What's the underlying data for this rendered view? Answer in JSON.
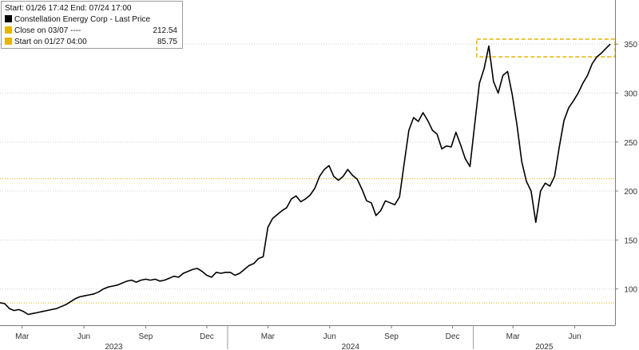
{
  "legend": {
    "header": "Start: 01/26 17:42 End: 07/24 17:00",
    "entries": [
      {
        "label": "Constellation Energy Corp - Last Price",
        "value": "",
        "color": "#000000"
      },
      {
        "label": "Close on 03/07 ----",
        "value": "212.54",
        "color": "#e8b400"
      },
      {
        "label": "Start on 01/27 04:00",
        "value": "85.75",
        "color": "#e8b400"
      }
    ]
  },
  "chart_data": {
    "type": "line",
    "series": [
      {
        "name": "Constellation Energy Corp - Last Price",
        "color": "#000000",
        "points": [
          [
            "2023-01-27",
            86
          ],
          [
            "2023-02-03",
            85
          ],
          [
            "2023-02-10",
            80
          ],
          [
            "2023-02-17",
            78
          ],
          [
            "2023-02-24",
            79
          ],
          [
            "2023-03-03",
            77
          ],
          [
            "2023-03-10",
            74
          ],
          [
            "2023-03-17",
            75
          ],
          [
            "2023-03-24",
            76
          ],
          [
            "2023-03-31",
            77
          ],
          [
            "2023-04-07",
            78
          ],
          [
            "2023-04-14",
            79
          ],
          [
            "2023-04-21",
            80
          ],
          [
            "2023-04-28",
            82
          ],
          [
            "2023-05-05",
            84
          ],
          [
            "2023-05-12",
            87
          ],
          [
            "2023-05-19",
            90
          ],
          [
            "2023-05-26",
            92
          ],
          [
            "2023-06-02",
            93
          ],
          [
            "2023-06-09",
            94
          ],
          [
            "2023-06-16",
            95
          ],
          [
            "2023-06-23",
            97
          ],
          [
            "2023-06-30",
            100
          ],
          [
            "2023-07-07",
            102
          ],
          [
            "2023-07-14",
            103
          ],
          [
            "2023-07-21",
            104
          ],
          [
            "2023-07-28",
            106
          ],
          [
            "2023-08-04",
            108
          ],
          [
            "2023-08-11",
            109
          ],
          [
            "2023-08-18",
            107
          ],
          [
            "2023-08-25",
            109
          ],
          [
            "2023-09-01",
            110
          ],
          [
            "2023-09-08",
            109
          ],
          [
            "2023-09-15",
            110
          ],
          [
            "2023-09-22",
            108
          ],
          [
            "2023-09-29",
            109
          ],
          [
            "2023-10-06",
            111
          ],
          [
            "2023-10-13",
            113
          ],
          [
            "2023-10-20",
            112
          ],
          [
            "2023-10-27",
            116
          ],
          [
            "2023-11-03",
            118
          ],
          [
            "2023-11-10",
            120
          ],
          [
            "2023-11-17",
            121
          ],
          [
            "2023-11-24",
            118
          ],
          [
            "2023-12-01",
            114
          ],
          [
            "2023-12-08",
            112
          ],
          [
            "2023-12-15",
            117
          ],
          [
            "2023-12-22",
            116
          ],
          [
            "2023-12-29",
            117
          ],
          [
            "2024-01-05",
            117
          ],
          [
            "2024-01-12",
            114
          ],
          [
            "2024-01-19",
            116
          ],
          [
            "2024-01-26",
            120
          ],
          [
            "2024-02-02",
            124
          ],
          [
            "2024-02-09",
            126
          ],
          [
            "2024-02-16",
            131
          ],
          [
            "2024-02-23",
            133
          ],
          [
            "2024-03-01",
            163
          ],
          [
            "2024-03-08",
            172
          ],
          [
            "2024-03-15",
            176
          ],
          [
            "2024-03-22",
            180
          ],
          [
            "2024-03-29",
            183
          ],
          [
            "2024-04-05",
            192
          ],
          [
            "2024-04-12",
            195
          ],
          [
            "2024-04-19",
            189
          ],
          [
            "2024-04-26",
            192
          ],
          [
            "2024-05-03",
            196
          ],
          [
            "2024-05-10",
            203
          ],
          [
            "2024-05-17",
            215
          ],
          [
            "2024-05-24",
            222
          ],
          [
            "2024-05-31",
            226
          ],
          [
            "2024-06-07",
            215
          ],
          [
            "2024-06-14",
            211
          ],
          [
            "2024-06-21",
            215
          ],
          [
            "2024-06-28",
            222
          ],
          [
            "2024-07-05",
            216
          ],
          [
            "2024-07-12",
            212
          ],
          [
            "2024-07-19",
            202
          ],
          [
            "2024-07-26",
            190
          ],
          [
            "2024-08-02",
            188
          ],
          [
            "2024-08-09",
            175
          ],
          [
            "2024-08-16",
            180
          ],
          [
            "2024-08-23",
            190
          ],
          [
            "2024-08-30",
            188
          ],
          [
            "2024-09-06",
            186
          ],
          [
            "2024-09-13",
            194
          ],
          [
            "2024-09-20",
            228
          ],
          [
            "2024-09-27",
            262
          ],
          [
            "2024-10-04",
            275
          ],
          [
            "2024-10-11",
            271
          ],
          [
            "2024-10-18",
            280
          ],
          [
            "2024-10-25",
            272
          ],
          [
            "2024-11-01",
            262
          ],
          [
            "2024-11-08",
            258
          ],
          [
            "2024-11-15",
            243
          ],
          [
            "2024-11-22",
            246
          ],
          [
            "2024-11-29",
            245
          ],
          [
            "2024-12-06",
            260
          ],
          [
            "2024-12-13",
            247
          ],
          [
            "2024-12-20",
            233
          ],
          [
            "2024-12-27",
            225
          ],
          [
            "2025-01-03",
            268
          ],
          [
            "2025-01-10",
            310
          ],
          [
            "2025-01-17",
            325
          ],
          [
            "2025-01-24",
            348
          ],
          [
            "2025-01-31",
            312
          ],
          [
            "2025-02-07",
            300
          ],
          [
            "2025-02-14",
            318
          ],
          [
            "2025-02-21",
            322
          ],
          [
            "2025-02-28",
            298
          ],
          [
            "2025-03-07",
            267
          ],
          [
            "2025-03-14",
            230
          ],
          [
            "2025-03-21",
            210
          ],
          [
            "2025-03-28",
            200
          ],
          [
            "2025-04-04",
            168
          ],
          [
            "2025-04-11",
            200
          ],
          [
            "2025-04-18",
            208
          ],
          [
            "2025-04-25",
            205
          ],
          [
            "2025-05-02",
            215
          ],
          [
            "2025-05-09",
            245
          ],
          [
            "2025-05-16",
            272
          ],
          [
            "2025-05-23",
            285
          ],
          [
            "2025-05-30",
            292
          ],
          [
            "2025-06-06",
            300
          ],
          [
            "2025-06-13",
            310
          ],
          [
            "2025-06-20",
            318
          ],
          [
            "2025-06-27",
            330
          ],
          [
            "2025-07-04",
            337
          ],
          [
            "2025-07-11",
            341
          ],
          [
            "2025-07-18",
            346
          ],
          [
            "2025-07-24",
            350
          ]
        ]
      }
    ],
    "reference_lines": [
      {
        "label": "Close on 03/07",
        "value": 212.54,
        "color": "#e8b400",
        "style": "dotted"
      },
      {
        "label": "Start on 01/27 04:00",
        "value": 85.75,
        "color": "#e8b400",
        "style": "dotted"
      }
    ],
    "highlight_box": {
      "x": [
        "2025-01-06",
        "2025-07-31"
      ],
      "y": [
        337,
        355
      ],
      "color": "#e8b400",
      "style": "dashed"
    },
    "current_value_line": {
      "value": 347,
      "color": "#e8b400"
    },
    "x_ticks": [
      {
        "date": "2023-03-01",
        "label": "Mar"
      },
      {
        "date": "2023-06-01",
        "label": "Jun"
      },
      {
        "date": "2023-09-01",
        "label": "Sep"
      },
      {
        "date": "2023-12-01",
        "label": "Dec"
      },
      {
        "date": "2024-03-01",
        "label": "Mar"
      },
      {
        "date": "2024-06-01",
        "label": "Jun"
      },
      {
        "date": "2024-09-01",
        "label": "Sep"
      },
      {
        "date": "2024-12-01",
        "label": "Dec"
      },
      {
        "date": "2025-03-01",
        "label": "Mar"
      },
      {
        "date": "2025-06-01",
        "label": "Jun"
      }
    ],
    "year_labels": [
      {
        "label": "2023",
        "start": "2023-01-01",
        "end": "2024-01-01"
      },
      {
        "label": "2024",
        "start": "2024-01-01",
        "end": "2025-01-01"
      },
      {
        "label": "2025",
        "start": "2025-01-01",
        "end": "2025-08-01"
      }
    ],
    "y_ticks": [
      100,
      150,
      200,
      250,
      300,
      350
    ],
    "xlim": [
      "2023-01-27",
      "2025-07-31"
    ],
    "ylim": [
      63,
      395
    ],
    "y_axis_side": "right",
    "grid": "horizontal dotted",
    "legend_position": "top-left"
  }
}
